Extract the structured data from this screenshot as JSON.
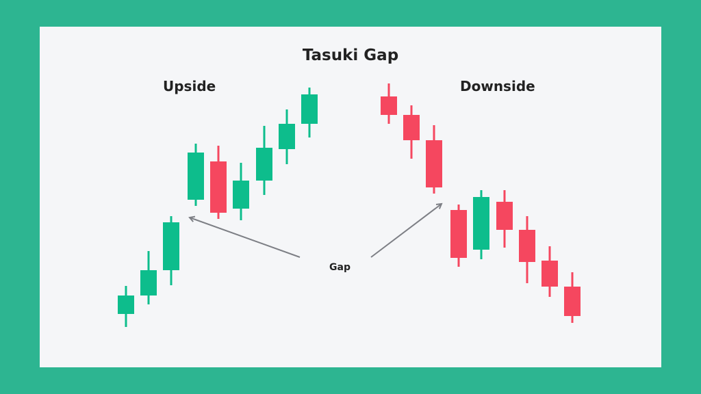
{
  "title": "Tasuki Gap",
  "upside_label": "Upside",
  "downside_label": "Downside",
  "gap_label": "Gap",
  "colors": {
    "background": "#2db591",
    "card": "#f5f6f8",
    "bullish": "#0dbd8c",
    "bearish": "#f5475f",
    "arrow": "#7d7f85"
  }
}
